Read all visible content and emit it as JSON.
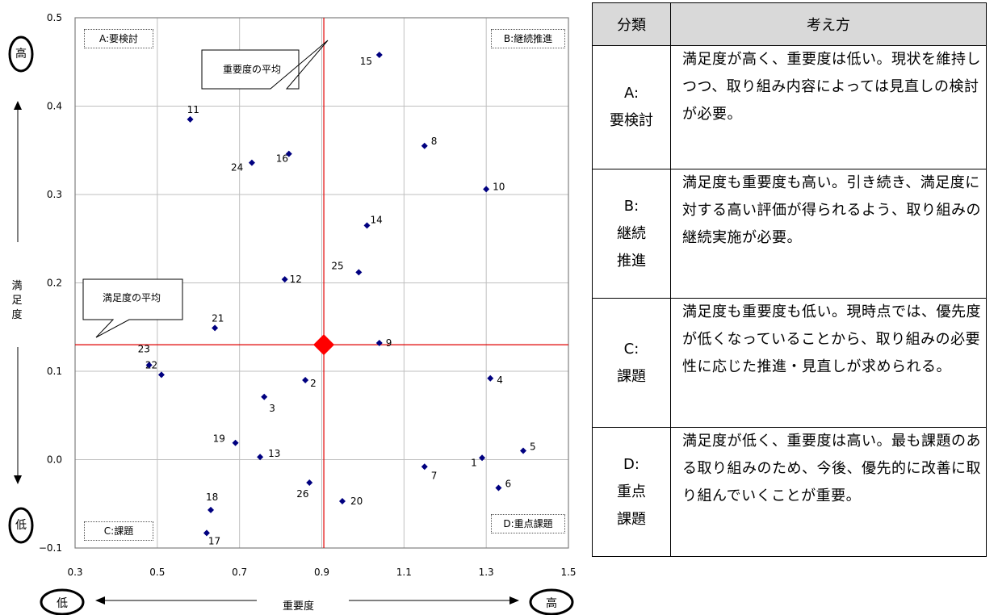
{
  "chart_data": {
    "type": "scatter",
    "xlabel": "重要度",
    "ylabel": "満足度",
    "xlim": [
      0.3,
      1.5
    ],
    "ylim": [
      -0.1,
      0.5
    ],
    "xticks": [
      "0.3",
      "0.5",
      "0.7",
      "0.9",
      "1.1",
      "1.3",
      "1.5"
    ],
    "yticks": [
      "0.5",
      "0.4",
      "0.3",
      "0.2",
      "0.1",
      "0.0",
      "−0.1"
    ],
    "grid": true,
    "points": [
      {
        "label": "1",
        "x": 1.29,
        "y": 0.002
      },
      {
        "label": "2",
        "x": 0.86,
        "y": 0.09
      },
      {
        "label": "3",
        "x": 0.76,
        "y": 0.071
      },
      {
        "label": "4",
        "x": 1.31,
        "y": 0.092
      },
      {
        "label": "5",
        "x": 1.39,
        "y": 0.01
      },
      {
        "label": "6",
        "x": 1.33,
        "y": -0.032
      },
      {
        "label": "7",
        "x": 1.15,
        "y": -0.008
      },
      {
        "label": "8",
        "x": 1.15,
        "y": 0.355
      },
      {
        "label": "9",
        "x": 1.04,
        "y": 0.132
      },
      {
        "label": "10",
        "x": 1.3,
        "y": 0.306
      },
      {
        "label": "11",
        "x": 0.58,
        "y": 0.385
      },
      {
        "label": "12",
        "x": 0.81,
        "y": 0.204
      },
      {
        "label": "13",
        "x": 0.75,
        "y": 0.003
      },
      {
        "label": "14",
        "x": 1.01,
        "y": 0.265
      },
      {
        "label": "15",
        "x": 1.04,
        "y": 0.458
      },
      {
        "label": "16",
        "x": 0.82,
        "y": 0.346
      },
      {
        "label": "17",
        "x": 0.62,
        "y": -0.083
      },
      {
        "label": "18",
        "x": 0.63,
        "y": -0.057
      },
      {
        "label": "19",
        "x": 0.69,
        "y": 0.019
      },
      {
        "label": "20",
        "x": 0.95,
        "y": -0.047
      },
      {
        "label": "21",
        "x": 0.64,
        "y": 0.149
      },
      {
        "label": "22",
        "x": 0.51,
        "y": 0.096
      },
      {
        "label": "23",
        "x": 0.48,
        "y": 0.107
      },
      {
        "label": "24",
        "x": 0.73,
        "y": 0.336
      },
      {
        "label": "25",
        "x": 0.99,
        "y": 0.212
      },
      {
        "label": "26",
        "x": 0.87,
        "y": -0.026
      }
    ],
    "mean": {
      "x": 0.905,
      "y": 0.13
    },
    "mean_x_label": "重要度の平均",
    "mean_y_label": "満足度の平均",
    "quadrants": {
      "A": "A:要検討",
      "B": "B:継続推進",
      "C": "C:課題",
      "D": "D:重点課題"
    }
  },
  "axis_text": {
    "high": "高",
    "low": "低",
    "x_title": "重要度",
    "y_title_chars": [
      "満",
      "足",
      "度"
    ]
  },
  "table": {
    "headers": [
      "分類",
      "考え方"
    ],
    "rows": [
      {
        "cat": [
          "A:",
          "要検討"
        ],
        "desc": "満足度が高く、重要度は低い。現状を維持しつつ、取り組み内容によっては見直しの検討が必要。"
      },
      {
        "cat": [
          "B:",
          "継続",
          "推進"
        ],
        "desc": "満足度も重要度も高い。引き続き、満足度に対する高い評価が得られるよう、取り組みの継続実施が必要。"
      },
      {
        "cat": [
          "C:",
          "課題"
        ],
        "desc": "満足度も重要度も低い。現時点では、優先度が低くなっていることから、取り組みの必要性に応じた推進・見直しが求められる。"
      },
      {
        "cat": [
          "D:",
          "重点",
          "課題"
        ],
        "desc": "満足度が低く、重要度は高い。最も課題のある取り組みのため、今後、優先的に改善に取り組んでいくことが重要。"
      }
    ]
  }
}
